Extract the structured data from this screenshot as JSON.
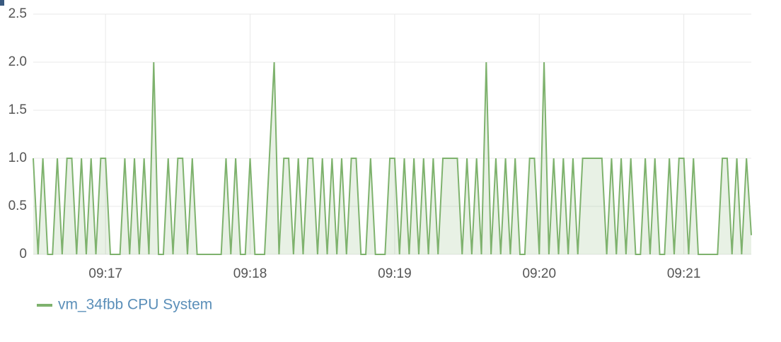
{
  "chart_data": {
    "type": "line",
    "x": [
      "09:16:30",
      "09:16:32",
      "09:16:34",
      "09:16:36",
      "09:16:38",
      "09:16:40",
      "09:16:42",
      "09:16:44",
      "09:16:46",
      "09:16:48",
      "09:16:50",
      "09:16:52",
      "09:16:54",
      "09:16:56",
      "09:16:58",
      "09:17:00",
      "09:17:02",
      "09:17:04",
      "09:17:06",
      "09:17:08",
      "09:17:10",
      "09:17:12",
      "09:17:14",
      "09:17:16",
      "09:17:18",
      "09:17:20",
      "09:17:22",
      "09:17:24",
      "09:17:26",
      "09:17:28",
      "09:17:30",
      "09:17:32",
      "09:17:34",
      "09:17:36",
      "09:17:38",
      "09:17:40",
      "09:17:42",
      "09:17:44",
      "09:17:46",
      "09:17:48",
      "09:17:50",
      "09:17:52",
      "09:17:54",
      "09:17:56",
      "09:17:58",
      "09:18:00",
      "09:18:02",
      "09:18:04",
      "09:18:06",
      "09:18:08",
      "09:18:10",
      "09:18:12",
      "09:18:14",
      "09:18:16",
      "09:18:18",
      "09:18:20",
      "09:18:22",
      "09:18:24",
      "09:18:26",
      "09:18:28",
      "09:18:30",
      "09:18:32",
      "09:18:34",
      "09:18:36",
      "09:18:38",
      "09:18:40",
      "09:18:42",
      "09:18:44",
      "09:18:46",
      "09:18:48",
      "09:18:50",
      "09:18:52",
      "09:18:54",
      "09:18:56",
      "09:18:58",
      "09:19:00",
      "09:19:02",
      "09:19:04",
      "09:19:06",
      "09:19:08",
      "09:19:10",
      "09:19:12",
      "09:19:14",
      "09:19:16",
      "09:19:18",
      "09:19:20",
      "09:19:22",
      "09:19:24",
      "09:19:26",
      "09:19:28",
      "09:19:30",
      "09:19:32",
      "09:19:34",
      "09:19:36",
      "09:19:38",
      "09:19:40",
      "09:19:42",
      "09:19:44",
      "09:19:46",
      "09:19:48",
      "09:19:50",
      "09:19:52",
      "09:19:54",
      "09:19:56",
      "09:19:58",
      "09:20:00",
      "09:20:02",
      "09:20:04",
      "09:20:06",
      "09:20:08",
      "09:20:10",
      "09:20:12",
      "09:20:14",
      "09:20:16",
      "09:20:18",
      "09:20:20",
      "09:20:22",
      "09:20:24",
      "09:20:26",
      "09:20:28",
      "09:20:30",
      "09:20:32",
      "09:20:34",
      "09:20:36",
      "09:20:38",
      "09:20:40",
      "09:20:42",
      "09:20:44",
      "09:20:46",
      "09:20:48",
      "09:20:50",
      "09:20:52",
      "09:20:54",
      "09:20:56",
      "09:20:58",
      "09:21:00",
      "09:21:02",
      "09:21:04",
      "09:21:06",
      "09:21:08",
      "09:21:10",
      "09:21:12",
      "09:21:14",
      "09:21:16",
      "09:21:18",
      "09:21:20",
      "09:21:22",
      "09:21:24",
      "09:21:26",
      "09:21:28"
    ],
    "series": [
      {
        "name": "vm_34fbb CPU System",
        "color": "#7eb26d",
        "values": [
          1,
          0,
          1,
          0,
          0,
          1,
          0,
          1,
          1,
          0,
          1,
          0,
          1,
          0,
          1,
          1,
          0,
          0,
          0,
          1,
          0,
          1,
          0,
          1,
          0,
          2,
          0,
          0,
          1,
          0,
          1,
          1,
          0,
          1,
          0,
          0,
          0,
          0,
          0,
          0,
          1,
          0,
          1,
          0,
          0,
          1,
          0,
          0,
          0,
          1,
          2,
          0,
          1,
          1,
          0,
          1,
          0,
          1,
          1,
          0,
          1,
          0,
          1,
          0,
          1,
          0,
          1,
          1,
          0,
          0,
          1,
          0,
          0,
          0,
          1,
          1,
          0,
          1,
          0,
          1,
          0,
          1,
          0,
          1,
          0,
          1,
          1,
          1,
          1,
          0,
          1,
          0,
          1,
          0,
          2,
          0,
          1,
          0,
          1,
          0,
          1,
          0,
          0,
          1,
          1,
          0,
          2,
          0,
          1,
          0,
          1,
          0,
          1,
          0,
          1,
          1,
          1,
          1,
          1,
          0,
          1,
          0,
          1,
          0,
          1,
          0,
          0,
          1,
          0,
          1,
          0,
          0,
          1,
          0,
          1,
          1,
          0,
          1,
          0,
          0,
          0,
          0,
          0,
          1,
          1,
          0,
          1,
          0,
          1,
          0.2
        ]
      }
    ],
    "xlim": [
      "09:16:30",
      "09:21:28"
    ],
    "xticks": [
      "09:17",
      "09:18",
      "09:19",
      "09:20",
      "09:21"
    ],
    "ylim": [
      0,
      2.5
    ],
    "yticks": [
      0,
      0.5,
      {
        "value": 1,
        "label": "1.0"
      },
      1.5,
      {
        "value": 2,
        "label": "2.0"
      },
      2.5
    ],
    "grid": true,
    "fill": true
  }
}
